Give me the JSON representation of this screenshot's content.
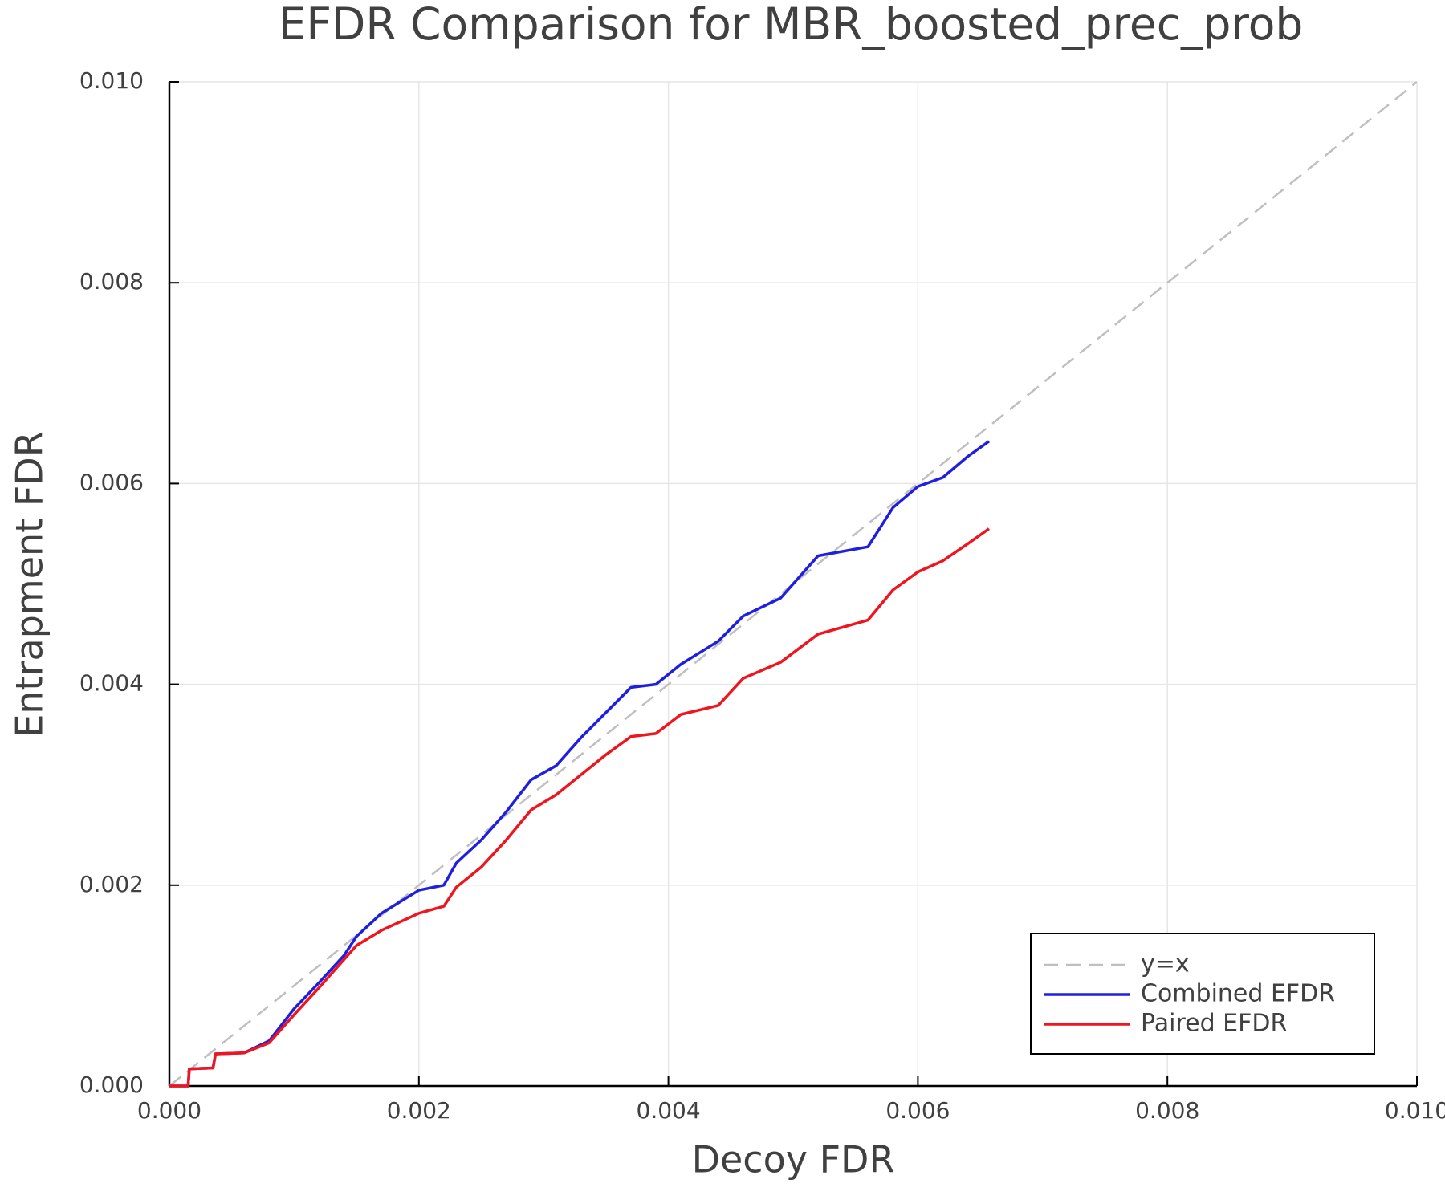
{
  "chart_data": {
    "type": "line",
    "title": "EFDR Comparison for MBR_boosted_prec_prob",
    "x_label": "Decoy FDR",
    "y_label": "Entrapment FDR",
    "xlim": [
      0,
      0.01
    ],
    "ylim": [
      0,
      0.01
    ],
    "xticks": [
      {
        "value": 0,
        "label": "0.000"
      },
      0.002,
      0.004,
      0.006,
      0.008,
      {
        "value": 0.01,
        "label": "0.010"
      }
    ],
    "yticks": [
      {
        "value": 0,
        "label": "0.000"
      },
      0.002,
      0.004,
      0.006,
      0.008,
      {
        "value": 0.01,
        "label": "0.010"
      }
    ],
    "grid": true,
    "legend": "bottom-right",
    "series": [
      {
        "name": "y=x",
        "color": "#bfbfbf",
        "style": "dashed",
        "x": [
          0,
          0.01
        ],
        "values": [
          0,
          0.01
        ]
      },
      {
        "name": "Combined EFDR",
        "color": "#1f1fe0",
        "style": "solid",
        "x": [
          0,
          0.00015,
          0.00016,
          0.00035,
          0.00037,
          0.0006,
          0.0008,
          0.001,
          0.0012,
          0.0014,
          0.0015,
          0.0017,
          0.002,
          0.0022,
          0.0023,
          0.0025,
          0.0027,
          0.0029,
          0.0031,
          0.0033,
          0.0035,
          0.0037,
          0.0039,
          0.0041,
          0.0044,
          0.0046,
          0.0049,
          0.0052,
          0.0056,
          0.0058,
          0.006,
          0.0062,
          0.0064,
          0.00657
        ],
        "values": [
          0,
          0,
          0.00017,
          0.00018,
          0.00032,
          0.00033,
          0.00045,
          0.00077,
          0.00103,
          0.0013,
          0.00149,
          0.00172,
          0.00195,
          0.002,
          0.00222,
          0.00245,
          0.00273,
          0.00305,
          0.00319,
          0.00347,
          0.00372,
          0.00397,
          0.004,
          0.0042,
          0.00443,
          0.00468,
          0.00486,
          0.00528,
          0.00537,
          0.00576,
          0.00597,
          0.00606,
          0.00627,
          0.00642
        ]
      },
      {
        "name": "Paired EFDR",
        "color": "#f0141e",
        "style": "solid",
        "x": [
          0,
          0.00015,
          0.00016,
          0.00035,
          0.00037,
          0.0006,
          0.0008,
          0.001,
          0.0012,
          0.0014,
          0.0015,
          0.0017,
          0.002,
          0.0022,
          0.0023,
          0.0025,
          0.0027,
          0.0029,
          0.0031,
          0.0033,
          0.0035,
          0.0037,
          0.0039,
          0.0041,
          0.0044,
          0.0046,
          0.0049,
          0.0052,
          0.0056,
          0.0058,
          0.006,
          0.0062,
          0.0064,
          0.00657
        ],
        "values": [
          0,
          0,
          0.00017,
          0.00018,
          0.00032,
          0.00033,
          0.00043,
          0.00071,
          0.00098,
          0.00126,
          0.0014,
          0.00155,
          0.00172,
          0.00179,
          0.00198,
          0.00218,
          0.00245,
          0.00275,
          0.0029,
          0.0031,
          0.0033,
          0.00348,
          0.00351,
          0.0037,
          0.00379,
          0.00406,
          0.00422,
          0.0045,
          0.00464,
          0.00494,
          0.00512,
          0.00523,
          0.0054,
          0.00555
        ]
      }
    ]
  }
}
